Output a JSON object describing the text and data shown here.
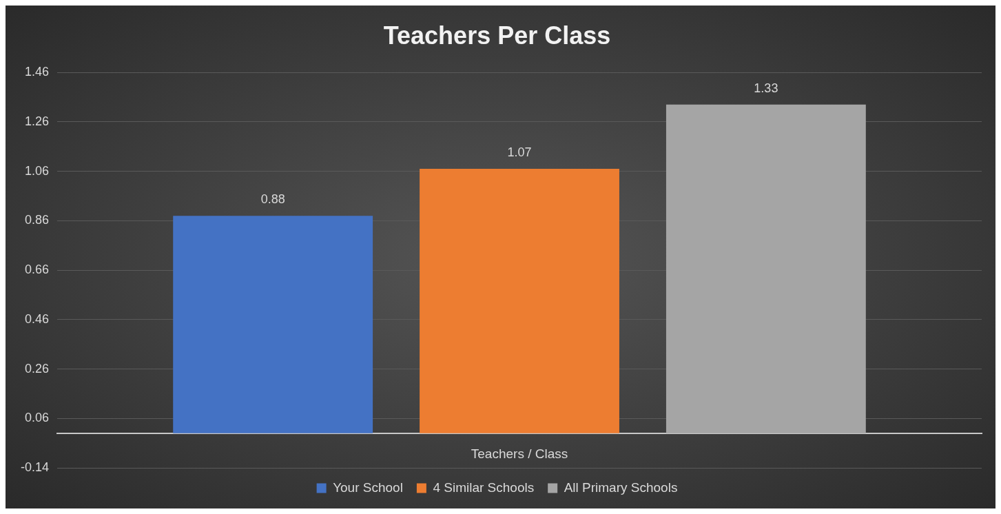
{
  "chart_data": {
    "type": "bar",
    "title": "Teachers Per Class",
    "categories": [
      "Teachers / Class"
    ],
    "series": [
      {
        "name": "Your School",
        "color": "#4472c4",
        "values": [
          0.88
        ]
      },
      {
        "name": "4 Similar Schools",
        "color": "#ed7d31",
        "values": [
          1.07
        ]
      },
      {
        "name": "All Primary Schools",
        "color": "#a5a5a5",
        "values": [
          1.33
        ]
      }
    ],
    "ylim": [
      -0.14,
      1.46
    ],
    "yticks": [
      -0.14,
      0.06,
      0.26,
      0.46,
      0.66,
      0.86,
      1.06,
      1.26,
      1.46
    ],
    "grid": "y",
    "legend": "bottom",
    "data_labels": true
  }
}
